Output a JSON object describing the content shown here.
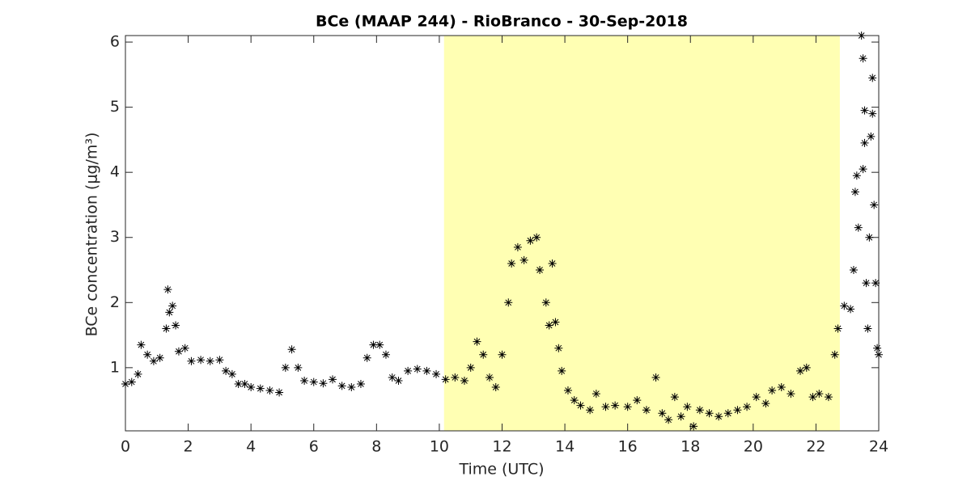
{
  "chart_data": {
    "type": "scatter",
    "title": "BCe (MAAP 244) - RioBranco - 30-Sep-2018",
    "x_label": "Time (UTC)",
    "y_label": "BCe concentration (μg/m³)",
    "marker": "asterisk",
    "color": "#000000",
    "highlight": {
      "x": [
        10.15,
        22.76
      ],
      "color": "#ffffb3"
    },
    "xlim": [
      0,
      24
    ],
    "xticks": [
      0,
      2,
      4,
      6,
      8,
      10,
      12,
      14,
      16,
      18,
      20,
      22,
      24
    ],
    "ylim": [
      0.03,
      6.1
    ],
    "yticks": [
      1,
      2,
      3,
      4,
      5,
      6
    ],
    "x": [
      0.0,
      0.2,
      0.4,
      0.5,
      0.7,
      0.9,
      1.1,
      1.3,
      1.35,
      1.4,
      1.5,
      1.6,
      1.7,
      1.9,
      2.1,
      2.4,
      2.7,
      3.0,
      3.2,
      3.4,
      3.6,
      3.8,
      4.0,
      4.3,
      4.6,
      4.9,
      5.1,
      5.3,
      5.5,
      5.7,
      6.0,
      6.3,
      6.6,
      6.9,
      7.2,
      7.5,
      7.7,
      7.9,
      8.1,
      8.3,
      8.5,
      8.7,
      9.0,
      9.3,
      9.6,
      9.9,
      10.2,
      10.5,
      10.8,
      11.0,
      11.2,
      11.4,
      11.6,
      11.8,
      12.0,
      12.2,
      12.3,
      12.5,
      12.7,
      12.9,
      13.1,
      13.2,
      13.4,
      13.5,
      13.6,
      13.7,
      13.8,
      13.9,
      14.1,
      14.3,
      14.5,
      14.8,
      15.0,
      15.3,
      15.6,
      16.0,
      16.3,
      16.6,
      16.9,
      17.1,
      17.3,
      17.5,
      17.7,
      17.9,
      18.1,
      18.3,
      18.6,
      18.9,
      19.2,
      19.5,
      19.8,
      20.1,
      20.4,
      20.6,
      20.9,
      21.2,
      21.5,
      21.7,
      21.9,
      22.1,
      22.4,
      22.6,
      22.7,
      22.9,
      23.1,
      23.2,
      23.25,
      23.3,
      23.35,
      23.45,
      23.5,
      23.5,
      23.55,
      23.55,
      23.6,
      23.65,
      23.7,
      23.75,
      23.8,
      23.8,
      23.85,
      23.9,
      23.95,
      24.0
    ],
    "y": [
      0.75,
      0.78,
      0.9,
      1.35,
      1.2,
      1.1,
      1.15,
      1.6,
      2.2,
      1.85,
      1.95,
      1.65,
      1.25,
      1.3,
      1.1,
      1.12,
      1.1,
      1.12,
      0.95,
      0.9,
      0.75,
      0.75,
      0.7,
      0.68,
      0.65,
      0.62,
      1.0,
      1.28,
      1.0,
      0.8,
      0.78,
      0.76,
      0.82,
      0.72,
      0.7,
      0.75,
      1.15,
      1.35,
      1.35,
      1.2,
      0.85,
      0.8,
      0.95,
      0.98,
      0.95,
      0.9,
      0.82,
      0.85,
      0.8,
      1.0,
      1.4,
      1.2,
      0.85,
      0.7,
      1.2,
      2.0,
      2.6,
      2.85,
      2.65,
      2.95,
      3.0,
      2.5,
      2.0,
      1.65,
      2.6,
      1.7,
      1.3,
      0.95,
      0.65,
      0.5,
      0.42,
      0.35,
      0.6,
      0.4,
      0.42,
      0.4,
      0.5,
      0.35,
      0.85,
      0.3,
      0.2,
      0.55,
      0.25,
      0.4,
      0.1,
      0.35,
      0.3,
      0.25,
      0.3,
      0.35,
      0.4,
      0.55,
      0.45,
      0.65,
      0.7,
      0.6,
      0.95,
      1.0,
      0.55,
      0.6,
      0.55,
      1.2,
      1.6,
      1.95,
      1.9,
      2.5,
      3.7,
      3.95,
      3.15,
      6.1,
      5.75,
      4.05,
      4.45,
      4.95,
      2.3,
      1.6,
      3.0,
      4.55,
      5.45,
      4.9,
      3.5,
      2.3,
      1.3,
      1.2
    ]
  }
}
